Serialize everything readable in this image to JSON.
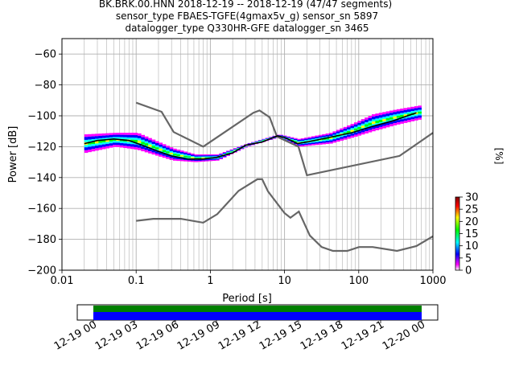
{
  "chart_data": [
    {
      "type": "heatmap",
      "title_lines": [
        "BK.BRK.00.HNN   2018-12-19 -- 2018-12-19  (47/47 segments)",
        "sensor_type FBAES-TGFE(4gmax5v_g) sensor_sn 5897",
        "datalogger_type Q330HR-GFE datalogger_sn 3465"
      ],
      "xlabel": "Period [s]",
      "ylabel": "Power [dB]",
      "xscale": "log",
      "xlim": [
        0.01,
        1000
      ],
      "ylim": [
        -200,
        -50
      ],
      "xtick_values": [
        0.01,
        0.1,
        1,
        10,
        100,
        1000
      ],
      "xtick_labels": [
        "0.01",
        "0.1",
        "1",
        "10",
        "100",
        "1000"
      ],
      "ytick_values": [
        -60,
        -80,
        -100,
        -120,
        -140,
        -160,
        -180,
        -200
      ],
      "ytick_labels": [
        "−60",
        "−80",
        "−100",
        "−120",
        "−140",
        "−160",
        "−180",
        "−200"
      ],
      "grid": true,
      "colorbar": {
        "label": "[%]",
        "range": [
          0,
          30
        ],
        "tick_values": [
          0,
          5,
          10,
          15,
          20,
          25,
          30
        ],
        "tick_labels": [
          "0",
          "5",
          "10",
          "15",
          "20",
          "25",
          "30"
        ]
      },
      "mode_line": {
        "name": "mode",
        "points": [
          [
            0.02,
            -118
          ],
          [
            0.03,
            -116
          ],
          [
            0.05,
            -115
          ],
          [
            0.08,
            -116
          ],
          [
            0.12,
            -119
          ],
          [
            0.2,
            -123
          ],
          [
            0.3,
            -126
          ],
          [
            0.5,
            -128
          ],
          [
            0.8,
            -128
          ],
          [
            1.2,
            -127
          ],
          [
            2,
            -124
          ],
          [
            3,
            -119
          ],
          [
            5,
            -117
          ],
          [
            8,
            -113
          ],
          [
            10,
            -114
          ],
          [
            15,
            -118
          ],
          [
            20,
            -117
          ],
          [
            40,
            -114
          ],
          [
            80,
            -111
          ],
          [
            150,
            -107
          ],
          [
            300,
            -103
          ],
          [
            600,
            -98
          ]
        ]
      },
      "spread_band": {
        "upper": [
          [
            0.02,
            -112
          ],
          [
            0.05,
            -111
          ],
          [
            0.1,
            -111
          ],
          [
            0.3,
            -121
          ],
          [
            0.6,
            -125
          ],
          [
            1.2,
            -125
          ],
          [
            3,
            -118
          ],
          [
            8,
            -112
          ],
          [
            15,
            -115
          ],
          [
            40,
            -111
          ],
          [
            80,
            -105
          ],
          [
            150,
            -99
          ],
          [
            300,
            -96
          ],
          [
            700,
            -93
          ]
        ],
        "lower": [
          [
            0.02,
            -124
          ],
          [
            0.05,
            -120
          ],
          [
            0.1,
            -122
          ],
          [
            0.3,
            -129
          ],
          [
            0.6,
            -130
          ],
          [
            1.2,
            -129
          ],
          [
            3,
            -120
          ],
          [
            8,
            -114
          ],
          [
            15,
            -120
          ],
          [
            40,
            -118
          ],
          [
            80,
            -114
          ],
          [
            150,
            -110
          ],
          [
            300,
            -106
          ],
          [
            700,
            -102
          ]
        ]
      },
      "noise_models": [
        {
          "name": "NHNM",
          "points": [
            [
              0.1,
              -91.5
            ],
            [
              0.22,
              -97.4
            ],
            [
              0.32,
              -110.5
            ],
            [
              0.8,
              -120
            ],
            [
              3.8,
              -98
            ],
            [
              4.6,
              -96.5
            ],
            [
              6.3,
              -101
            ],
            [
              7.9,
              -113.5
            ],
            [
              15.4,
              -120
            ],
            [
              20,
              -138.5
            ],
            [
              354.8,
              -126
            ],
            [
              1000,
              -111
            ]
          ]
        },
        {
          "name": "NLNM",
          "points": [
            [
              0.1,
              -168
            ],
            [
              0.17,
              -166.7
            ],
            [
              0.4,
              -166.7
            ],
            [
              0.8,
              -169.2
            ],
            [
              1.24,
              -163.7
            ],
            [
              2.4,
              -148.6
            ],
            [
              4.3,
              -141.1
            ],
            [
              5,
              -141.1
            ],
            [
              6,
              -149
            ],
            [
              10,
              -163
            ],
            [
              12,
              -166
            ],
            [
              15.6,
              -162
            ],
            [
              21.9,
              -177.5
            ],
            [
              31.6,
              -185
            ],
            [
              45,
              -187.5
            ],
            [
              70,
              -187.5
            ],
            [
              101,
              -185
            ],
            [
              154,
              -185
            ],
            [
              328,
              -187.5
            ],
            [
              600,
              -184.4
            ],
            [
              1000,
              -178
            ]
          ]
        }
      ]
    },
    {
      "type": "timeline",
      "x_tick_labels": [
        "12-19 00",
        "12-19 03",
        "12-19 06",
        "12-19 09",
        "12-19 12",
        "12-19 15",
        "12-19 18",
        "12-19 21",
        "12-20 00"
      ],
      "tick_hours": [
        0,
        3,
        6,
        9,
        12,
        15,
        18,
        21,
        24
      ],
      "coverage_hours": [
        0,
        24
      ],
      "colors": {
        "top": "#008000",
        "bottom": "#0000ff"
      }
    }
  ]
}
